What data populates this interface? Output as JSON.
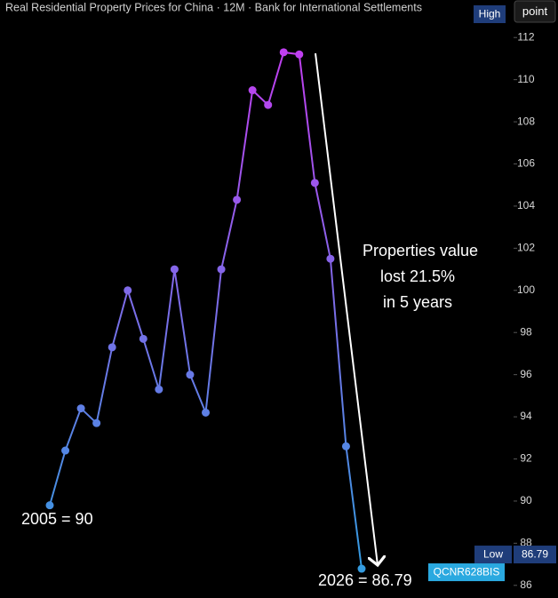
{
  "chart_data": {
    "type": "line",
    "title": "Real Residential Property Prices for China · 12M · Bank for International Settlements",
    "high_badge": "High",
    "unit_button": "point",
    "values": [
      89.8,
      92.4,
      94.4,
      93.7,
      97.3,
      100.0,
      97.7,
      95.3,
      101.0,
      96.0,
      94.2,
      101.0,
      104.3,
      109.5,
      108.8,
      111.3,
      111.2,
      105.1,
      101.5,
      92.6,
      86.79
    ],
    "color_low": "#2f9fe0",
    "color_high": "#c43cf0",
    "ylim": [
      85.4,
      112.6
    ],
    "yticks": [
      86,
      88,
      90,
      92,
      94,
      96,
      98,
      100,
      102,
      104,
      106,
      108,
      110,
      112
    ],
    "low_badge": {
      "label": "Low",
      "value": 86.79
    },
    "series_code": "QCNR628BIS",
    "annotations": [
      "Properties value",
      "lost 21.5%",
      "in 5 years",
      "2005 = 90",
      "2026 = 86.79"
    ]
  }
}
